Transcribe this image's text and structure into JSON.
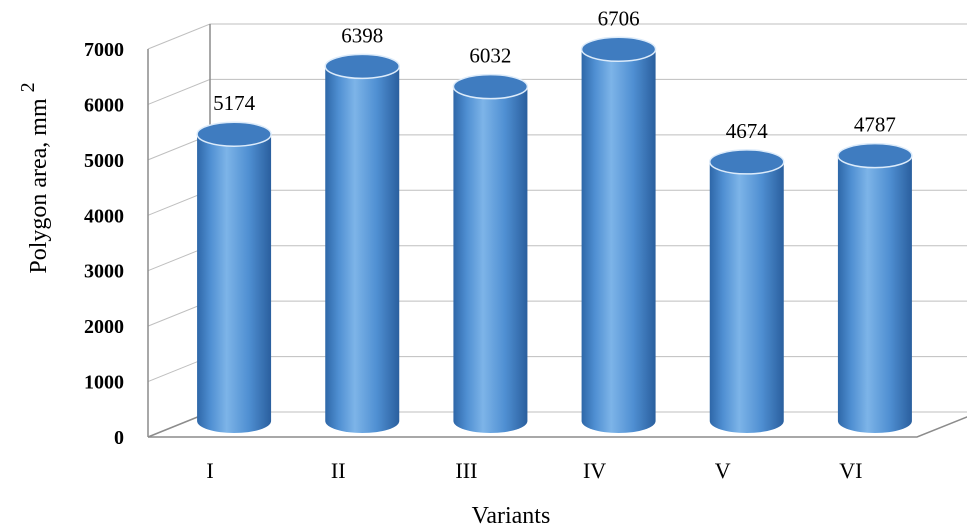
{
  "chart_data": {
    "type": "bar",
    "style": "3d-cylinder",
    "categories": [
      "I",
      "II",
      "III",
      "IV",
      "V",
      "VI"
    ],
    "values": [
      5174,
      6398,
      6032,
      6706,
      4674,
      4787
    ],
    "xlabel": "Variants",
    "ylabel": "Polygon area, mm",
    "ylabel_superscript": "2",
    "ylim": [
      0,
      7000
    ],
    "yticks": [
      0,
      1000,
      2000,
      3000,
      4000,
      5000,
      6000,
      7000
    ],
    "grid": true,
    "legend": "none",
    "data_labels": true,
    "colors": {
      "bar_light": "#6fa8e0",
      "bar_mid": "#4f8fd2",
      "bar_dark": "#2e67a8",
      "bar_top": "#3f7cc0",
      "grid": "#bfbfbf"
    }
  }
}
